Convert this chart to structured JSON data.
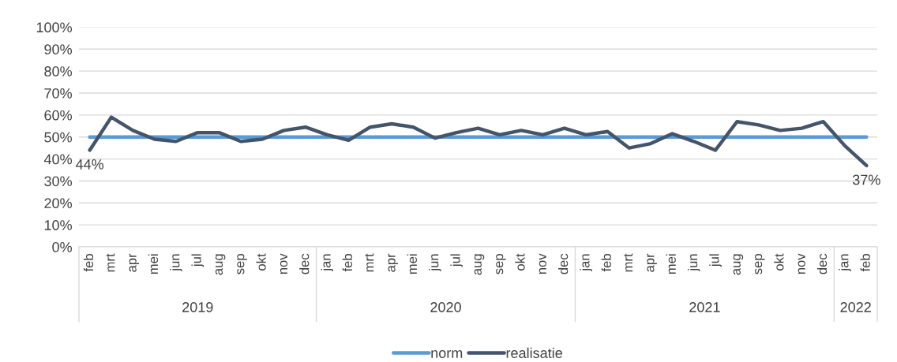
{
  "chart_data": {
    "type": "line",
    "categories": [
      "feb",
      "mrt",
      "apr",
      "mei",
      "jun",
      "jul",
      "aug",
      "sep",
      "okt",
      "nov",
      "dec",
      "jan",
      "feb",
      "mrt",
      "apr",
      "mei",
      "jun",
      "jul",
      "aug",
      "sep",
      "okt",
      "nov",
      "dec",
      "jan",
      "feb",
      "mrt",
      "apr",
      "mei",
      "jun",
      "jul",
      "aug",
      "sep",
      "okt",
      "nov",
      "dec",
      "jan",
      "feb"
    ],
    "series": [
      {
        "name": "norm",
        "color": "#5b9bd5",
        "values": [
          50,
          50,
          50,
          50,
          50,
          50,
          50,
          50,
          50,
          50,
          50,
          50,
          50,
          50,
          50,
          50,
          50,
          50,
          50,
          50,
          50,
          50,
          50,
          50,
          50,
          50,
          50,
          50,
          50,
          50,
          50,
          50,
          50,
          50,
          50,
          50,
          50
        ]
      },
      {
        "name": "realisatie",
        "color": "#44546a",
        "values": [
          44,
          59,
          53,
          49,
          48,
          52,
          52,
          48,
          49,
          53,
          54.5,
          51,
          48.5,
          54.5,
          56,
          54.5,
          49.5,
          52,
          54,
          51,
          53,
          51,
          54,
          51,
          52.5,
          45,
          47,
          51.5,
          48,
          44,
          57,
          55.5,
          53,
          54,
          57,
          46,
          37
        ],
        "value_labels": [
          "44%",
          null,
          null,
          null,
          null,
          null,
          null,
          null,
          null,
          null,
          null,
          null,
          null,
          null,
          null,
          null,
          null,
          null,
          null,
          null,
          null,
          null,
          null,
          null,
          null,
          null,
          null,
          null,
          null,
          null,
          null,
          null,
          null,
          null,
          null,
          null,
          "37%"
        ]
      }
    ],
    "annotations": [
      "2019",
      "2020",
      "2021",
      "2022"
    ],
    "ylim": [
      0,
      100
    ],
    "yticks": [
      {
        "value": 0,
        "label": "0%"
      },
      {
        "value": 10,
        "label": "10%"
      },
      {
        "value": 20,
        "label": "20%"
      },
      {
        "value": 30,
        "label": "30%"
      },
      {
        "value": 40,
        "label": "40%"
      },
      {
        "value": 50,
        "label": "50%"
      },
      {
        "value": 60,
        "label": "60%"
      },
      {
        "value": 70,
        "label": "70%"
      },
      {
        "value": 80,
        "label": "80%"
      },
      {
        "value": 90,
        "label": "90%"
      },
      {
        "value": 100,
        "label": "100%"
      }
    ],
    "grid": "y",
    "legend": "bottom",
    "marker": "none",
    "line_style": "solid"
  }
}
